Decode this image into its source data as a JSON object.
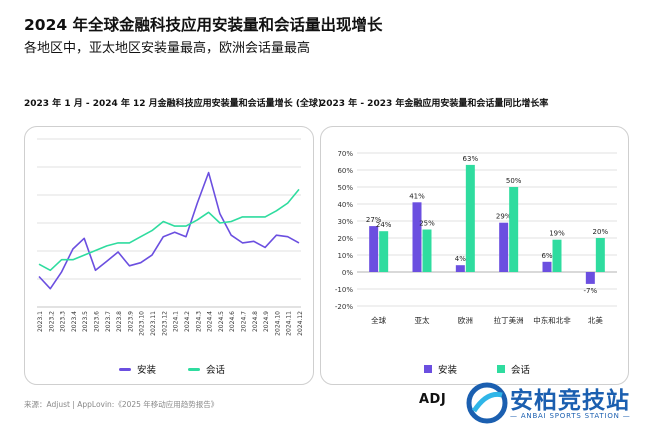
{
  "header": {
    "title": "2024 年全球金融科技应用安装量和会话量出现增长",
    "subtitle": "各地区中，亚太地区安装量最高，欧洲会话量最高"
  },
  "left_chart_title": "2023 年 1 月 - 2024 年 12 月金融科技应用安装量和会话量增长 (全球)",
  "right_chart_title": "2023 年 - 2023 年金融应用安装量和会话量同比增长率",
  "colors": {
    "installs": "#6b4fe0",
    "sessions": "#2fdc9f",
    "grid": "#d9d9d9"
  },
  "chart_data": [
    {
      "type": "line",
      "x": [
        "2023.1",
        "2023.2",
        "2023.3",
        "2023.4",
        "2023.5",
        "2023.6",
        "2023.7",
        "2023.8",
        "2023.9",
        "2023.10",
        "2023.11",
        "2023.12",
        "2024.1",
        "2024.2",
        "2024.3",
        "2024.4",
        "2024.5",
        "2024.6",
        "2024.7",
        "2024.8",
        "2024.9",
        "2024.10",
        "2024.11",
        "2024.12"
      ],
      "series": [
        {
          "name": "安装",
          "values": [
            100,
            92,
            103,
            118,
            125,
            104,
            110,
            116,
            107,
            109,
            114,
            126,
            129,
            126,
            148,
            168,
            141,
            127,
            122,
            123,
            119,
            127,
            126,
            122
          ]
        },
        {
          "name": "会话",
          "values": [
            108,
            104,
            111,
            111,
            114,
            117,
            120,
            122,
            122,
            126,
            130,
            136,
            133,
            133,
            137,
            142,
            135,
            136,
            139,
            139,
            139,
            143,
            148,
            157
          ]
        }
      ],
      "ylim": [
        80,
        190
      ],
      "grid": "horizontal",
      "legend": "bottom"
    },
    {
      "type": "bar",
      "categories": [
        "全球",
        "亚太",
        "欧洲",
        "拉丁美洲",
        "中东和北非",
        "北美"
      ],
      "series": [
        {
          "name": "安装",
          "values": [
            27,
            41,
            4,
            29,
            6,
            -7
          ],
          "labels": [
            "27%",
            "41%",
            "4%",
            "29%",
            "6%",
            "-7%"
          ]
        },
        {
          "name": "会话",
          "values": [
            24,
            25,
            63,
            50,
            19,
            20
          ],
          "labels": [
            "24%",
            "25%",
            "63%",
            "50%",
            "19%",
            "20%"
          ]
        }
      ],
      "ylim": [
        -20,
        70
      ],
      "yticks": [
        "70%",
        "60%",
        "50%",
        "40%",
        "30%",
        "20%",
        "10%",
        "0%",
        "-10%",
        "-20%"
      ],
      "grid": "horizontal",
      "legend": "bottom"
    }
  ],
  "legend": {
    "installs": "安装",
    "sessions": "会话"
  },
  "footer": {
    "source": "来源：Adjust | AppLovin:《2025 年移动应用趋势报告》",
    "adj_logo": "ADJ",
    "brand_name": "安柏竞技站",
    "brand_sub": "— ANBAI SPORTS STATION —"
  }
}
